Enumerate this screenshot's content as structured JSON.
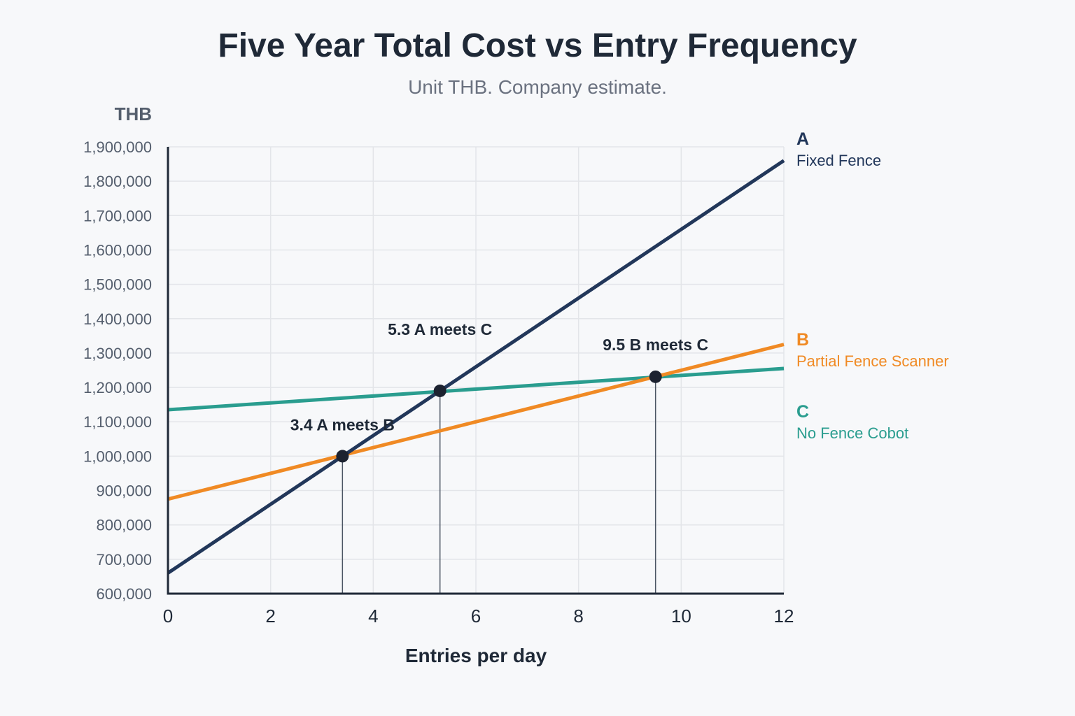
{
  "chart_data": {
    "type": "line",
    "title": "Five Year Total Cost vs Entry Frequency",
    "subtitle": "Unit THB. Company estimate.",
    "xlabel": "Entries per day",
    "ylabel": "THB",
    "xlim": [
      0,
      12
    ],
    "ylim": [
      600000,
      1900000
    ],
    "x_ticks": [
      "0",
      "2",
      "4",
      "6",
      "8",
      "10",
      "12"
    ],
    "y_ticks": [
      "600,000",
      "700,000",
      "800,000",
      "900,000",
      "1,000,000",
      "1,100,000",
      "1,200,000",
      "1,300,000",
      "1,400,000",
      "1,500,000",
      "1,600,000",
      "1,700,000",
      "1,800,000",
      "1,900,000"
    ],
    "grid": true,
    "legend_placement": "right",
    "series": [
      {
        "key": "A",
        "name": "Fixed Fence",
        "color": "#22375a",
        "x": [
          0,
          12
        ],
        "values": [
          660000,
          1860000
        ]
      },
      {
        "key": "B",
        "name": "Partial Fence Scanner",
        "color": "#f08a24",
        "x": [
          0,
          12
        ],
        "values": [
          875000,
          1325000
        ]
      },
      {
        "key": "C",
        "name": "No Fence Cobot",
        "color": "#2a9d8f",
        "x": [
          0,
          12
        ],
        "values": [
          1135000,
          1255000
        ]
      }
    ],
    "annotations": [
      {
        "text": "3.4 A meets B",
        "x": 3.4,
        "y": 1000000
      },
      {
        "text": "5.3 A meets C",
        "x": 5.3,
        "y": 1190000
      },
      {
        "text": "9.5 B meets C",
        "x": 9.5,
        "y": 1231000
      }
    ]
  }
}
